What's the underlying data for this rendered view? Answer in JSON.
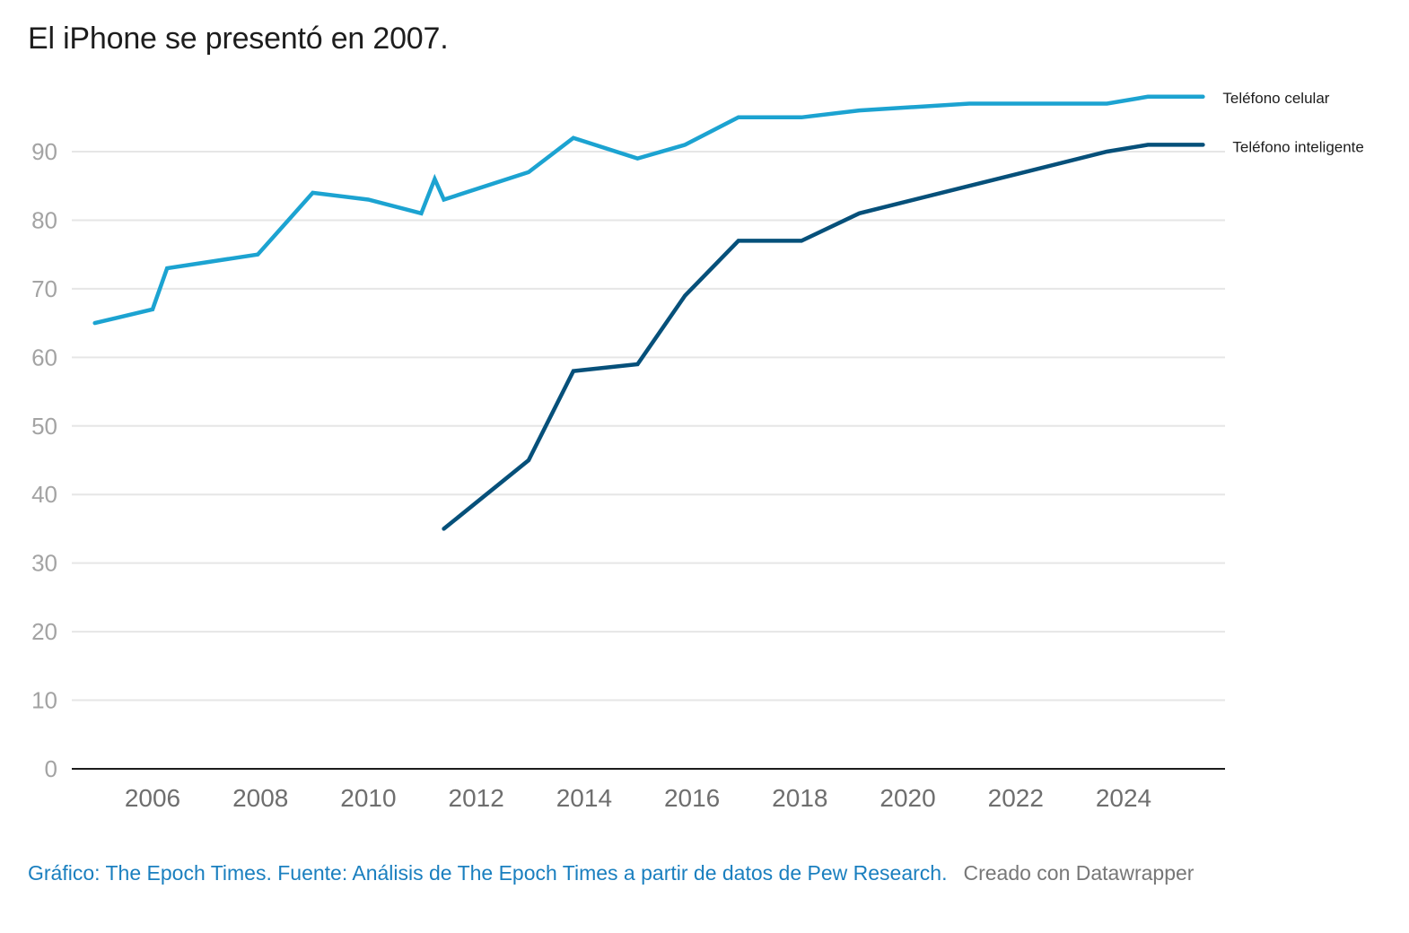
{
  "chart_data": {
    "type": "line",
    "title": "El iPhone se presentó en 2007.",
    "xlabel": "",
    "ylabel": "",
    "xlim": [
      2004.6,
      2025.9
    ],
    "ylim": [
      0,
      100
    ],
    "grid": true,
    "legend_placement": "right (inline labels at line ends)",
    "yticks": [
      0,
      10,
      20,
      30,
      40,
      50,
      60,
      70,
      80,
      90
    ],
    "xticks": [
      2006,
      2008,
      2010,
      2012,
      2014,
      2016,
      2018,
      2020,
      2022,
      2024
    ],
    "series": [
      {
        "name": "Teléfono celular",
        "color": "#1ca3d1",
        "points": [
          [
            2004.93,
            65
          ],
          [
            2006.0,
            67
          ],
          [
            2006.27,
            73
          ],
          [
            2007.95,
            75
          ],
          [
            2008.97,
            84
          ],
          [
            2010.0,
            83
          ],
          [
            2010.98,
            81
          ],
          [
            2011.23,
            86
          ],
          [
            2011.4,
            83
          ],
          [
            2012.97,
            87
          ],
          [
            2013.8,
            92
          ],
          [
            2014.99,
            89
          ],
          [
            2015.87,
            91
          ],
          [
            2016.86,
            95
          ],
          [
            2018.03,
            95
          ],
          [
            2019.1,
            96
          ],
          [
            2021.14,
            97
          ],
          [
            2023.69,
            97
          ],
          [
            2024.45,
            98
          ],
          [
            2025.47,
            98
          ]
        ]
      },
      {
        "name": "Teléfono inteligente",
        "color": "#06507a",
        "points": [
          [
            2011.4,
            35
          ],
          [
            2012.97,
            45
          ],
          [
            2013.8,
            58
          ],
          [
            2014.99,
            59
          ],
          [
            2015.87,
            69
          ],
          [
            2016.86,
            77
          ],
          [
            2018.03,
            77
          ],
          [
            2019.1,
            81
          ],
          [
            2021.14,
            85
          ],
          [
            2023.69,
            90
          ],
          [
            2024.45,
            91
          ],
          [
            2025.47,
            91
          ]
        ]
      }
    ]
  },
  "footer": {
    "source": "Gráfico: The Epoch Times. Fuente: Análisis de The Epoch Times a partir de datos de Pew Research.",
    "credit": "Creado con Datawrapper"
  },
  "colors": {
    "gridline": "#e6e6e6",
    "baseline": "#1d1d1d",
    "source_link": "#1a7fbf"
  }
}
